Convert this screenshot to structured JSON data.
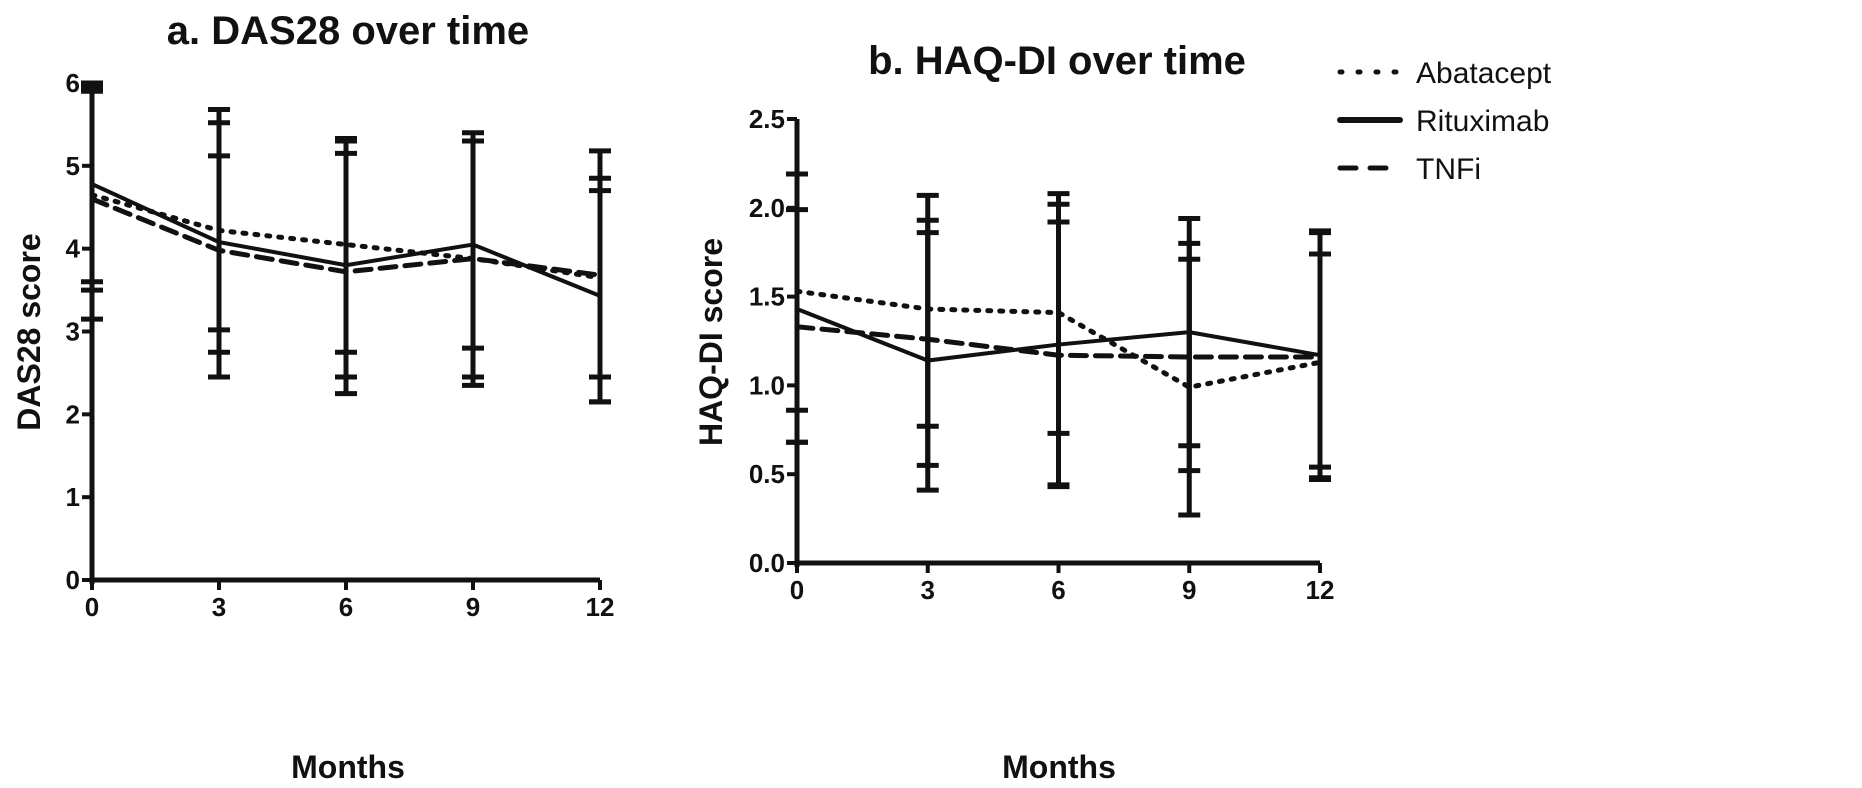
{
  "chart_data": [
    {
      "type": "line",
      "title": "a. DAS28 over time",
      "xlabel": "Months",
      "ylabel": "DAS28 score",
      "x": [
        0,
        3,
        6,
        9,
        12
      ],
      "xticks": [
        "0",
        "3",
        "6",
        "9",
        "12"
      ],
      "yticks": [
        "0",
        "1",
        "2",
        "3",
        "4",
        "5",
        "6"
      ],
      "xlim": [
        0,
        12
      ],
      "ylim": [
        0,
        6
      ],
      "grid": false,
      "series": [
        {
          "name": "Abatacept",
          "style": "dotted",
          "values": [
            4.65,
            4.22,
            4.05,
            3.88,
            3.65
          ],
          "err_low": [
            3.5,
            2.75,
            2.45,
            2.35,
            2.45
          ],
          "err_high": [
            5.9,
            5.68,
            5.3,
            5.4,
            4.85
          ]
        },
        {
          "name": "Rituximab",
          "style": "solid",
          "values": [
            4.78,
            4.08,
            3.8,
            4.05,
            3.43
          ],
          "err_low": [
            3.6,
            2.45,
            2.25,
            2.8,
            2.15
          ],
          "err_high": [
            5.95,
            5.12,
            5.33,
            5.3,
            4.7
          ]
        },
        {
          "name": "TNFi",
          "style": "dashed",
          "values": [
            4.6,
            3.98,
            3.72,
            3.88,
            3.68
          ],
          "err_low": [
            3.15,
            3.02,
            2.75,
            2.45,
            2.15
          ],
          "err_high": [
            6.0,
            5.52,
            5.15,
            5.3,
            5.18
          ]
        }
      ]
    },
    {
      "type": "line",
      "title": "b. HAQ-DI over time",
      "xlabel": "Months",
      "ylabel": "HAQ-DI score",
      "x": [
        0,
        3,
        6,
        9,
        12
      ],
      "xticks": [
        "0",
        "3",
        "6",
        "9",
        "12"
      ],
      "yticks": [
        "0.0",
        "0.5",
        "1.0",
        "1.5",
        "2.0",
        "2.5"
      ],
      "xlim": [
        0,
        12
      ],
      "ylim": [
        0,
        2.5
      ],
      "grid": false,
      "legend": "top-right",
      "series": [
        {
          "name": "Abatacept",
          "style": "dotted",
          "values": [
            1.53,
            1.43,
            1.41,
            0.99,
            1.13
          ],
          "err_low": [
            0.68,
            0.41,
            0.43,
            0.27,
            0.47
          ],
          "err_high": [
            2.19,
            2.07,
            2.08,
            1.94,
            1.86
          ]
        },
        {
          "name": "Rituximab",
          "style": "solid",
          "values": [
            1.43,
            1.14,
            1.23,
            1.3,
            1.17
          ],
          "err_low": [
            0.86,
            0.55,
            0.44,
            0.52,
            0.48
          ],
          "err_high": [
            1.99,
            1.86,
            2.02,
            1.8,
            1.87
          ]
        },
        {
          "name": "TNFi",
          "style": "dashed",
          "values": [
            1.33,
            1.26,
            1.17,
            1.16,
            1.16
          ],
          "err_low": [
            0.68,
            0.77,
            0.73,
            0.66,
            0.54
          ],
          "err_high": [
            2.19,
            1.93,
            1.92,
            1.71,
            1.74
          ]
        }
      ]
    }
  ],
  "legend": {
    "items": [
      {
        "label": "Abatacept",
        "style": "dotted"
      },
      {
        "label": "Rituximab",
        "style": "solid"
      },
      {
        "label": "TNFi",
        "style": "dashed"
      }
    ]
  },
  "colors": {
    "ink": "#111111",
    "background": "#ffffff"
  }
}
